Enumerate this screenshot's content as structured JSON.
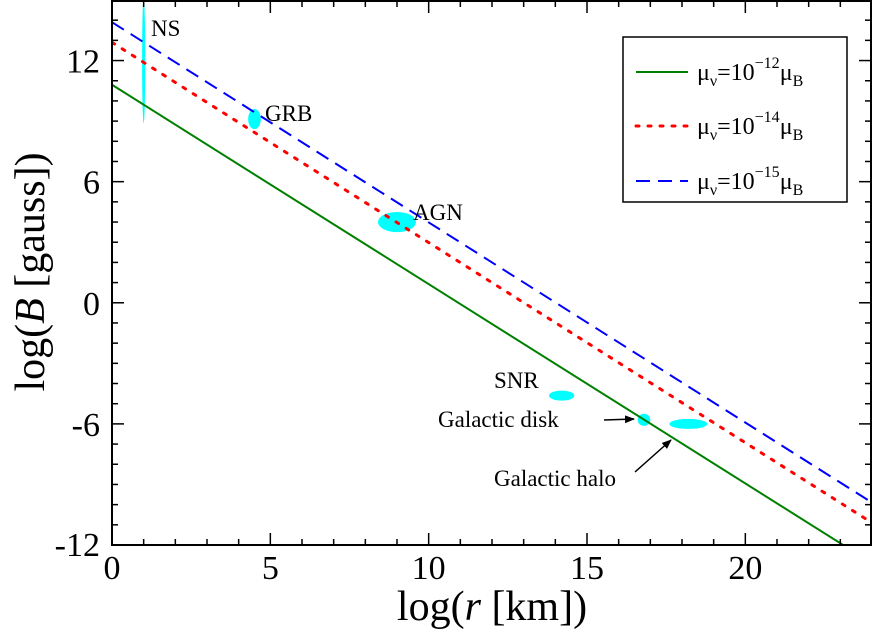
{
  "chart_data": {
    "type": "line",
    "xlabel": {
      "pre": "log(",
      "var": "r",
      "post": " [km])"
    },
    "ylabel": {
      "pre": "log(",
      "var": "B",
      "post": " [gauss])"
    },
    "xlim": [
      0,
      24
    ],
    "ylim": [
      -12,
      15
    ],
    "x_ticks": [
      0,
      5,
      10,
      15,
      20
    ],
    "x_tick_labels": [
      "0",
      "5",
      "10",
      "15",
      "20"
    ],
    "y_ticks": [
      -12,
      -6,
      0,
      6,
      12
    ],
    "y_tick_labels": [
      "-12",
      "-6",
      "0",
      "6",
      "12"
    ],
    "grid": false,
    "legend_position": "top-right",
    "series": [
      {
        "name": "μν=10−12μB",
        "mu": "μ",
        "nu": "ν",
        "eq": "=10",
        "exp": "−12",
        "B": "B",
        "style": "solid",
        "color": "#008000",
        "x": [
          0,
          24
        ],
        "y": [
          10.8,
          -12.9
        ]
      },
      {
        "name": "μν=10−14μB",
        "mu": "μ",
        "nu": "ν",
        "eq": "=10",
        "exp": "−14",
        "B": "B",
        "style": "dotted",
        "color": "#ff0000",
        "x": [
          0,
          24
        ],
        "y": [
          12.9,
          -10.9
        ]
      },
      {
        "name": "μν=10−15μB",
        "mu": "μ",
        "nu": "ν",
        "eq": "=10",
        "exp": "−15",
        "B": "B",
        "style": "dashed",
        "color": "#0000ff",
        "x": [
          0,
          24
        ],
        "y": [
          13.9,
          -9.9
        ]
      }
    ],
    "regions": [
      {
        "label": "NS",
        "x": 1,
        "y": 12,
        "rx": 0.05,
        "ry": 3.1,
        "color": "#00ffff"
      },
      {
        "label": "GRB",
        "x": 4.5,
        "y": 9.1,
        "rx": 0.2,
        "ry": 0.5,
        "color": "#00ffff"
      },
      {
        "label": "AGN",
        "x": 9.0,
        "y": 4.0,
        "rx": 0.6,
        "ry": 0.5,
        "color": "#00ffff"
      },
      {
        "label": "SNR",
        "x": 14.2,
        "y": -4.6,
        "rx": 0.4,
        "ry": 0.25,
        "color": "#00ffff"
      },
      {
        "label": "Galactic disk",
        "x": 16.8,
        "y": -5.8,
        "rx": 0.2,
        "ry": 0.3,
        "color": "#00ffff"
      },
      {
        "label": "Galactic halo",
        "x": 18.2,
        "y": -6.0,
        "rx": 0.6,
        "ry": 0.25,
        "color": "#00ffff"
      }
    ]
  }
}
